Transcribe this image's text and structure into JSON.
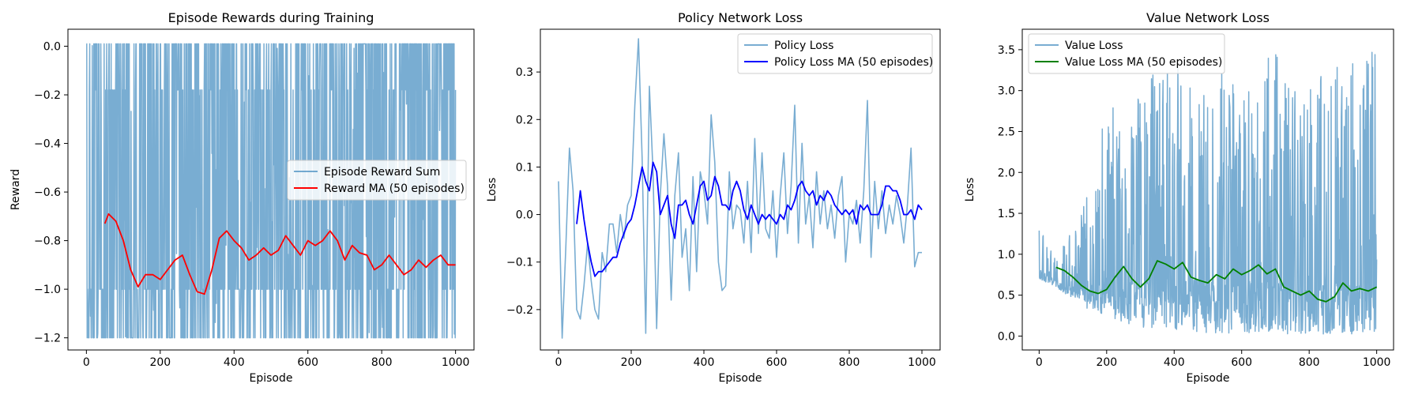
{
  "chart_data": [
    {
      "type": "line",
      "title": "Episode Rewards during Training",
      "xlabel": "Episode",
      "ylabel": "Reward",
      "xlim": [
        -50,
        1050
      ],
      "ylim": [
        -1.25,
        0.07
      ],
      "xticks": [
        0,
        200,
        400,
        600,
        800,
        1000
      ],
      "yticks": [
        -1.2,
        -1.0,
        -0.8,
        -0.6,
        -0.4,
        -0.2,
        0.0
      ],
      "ytick_labels": [
        "−1.2",
        "−1.0",
        "−0.8",
        "−0.6",
        "−0.4",
        "−0.2",
        "0.0"
      ],
      "legend_position": "center-right",
      "series": [
        {
          "name": "Episode Reward Sum",
          "kind": "noisy",
          "color": "#1f77b4",
          "x": [
            0,
            25,
            50,
            100,
            150,
            200,
            300,
            400,
            500,
            600,
            700,
            800,
            900,
            1000
          ],
          "low": [
            -1.2,
            -1.2,
            -1.2,
            -1.2,
            -1.2,
            -1.2,
            -1.2,
            -1.2,
            -1.2,
            -1.2,
            -1.2,
            -1.2,
            -1.2,
            -1.2
          ],
          "high": [
            0.01,
            0.01,
            0.01,
            0.01,
            0.01,
            0.01,
            0.01,
            0.01,
            0.01,
            0.01,
            0.01,
            0.01,
            0.01,
            0.01
          ]
        },
        {
          "name": "Reward MA (50 episodes)",
          "kind": "smooth",
          "color": "#ff0000",
          "x": [
            50,
            60,
            80,
            100,
            120,
            140,
            160,
            180,
            200,
            220,
            240,
            260,
            280,
            300,
            320,
            340,
            360,
            380,
            400,
            420,
            440,
            460,
            480,
            500,
            520,
            540,
            560,
            580,
            600,
            620,
            640,
            660,
            680,
            700,
            720,
            740,
            760,
            780,
            800,
            820,
            840,
            860,
            880,
            900,
            920,
            940,
            960,
            980,
            1000
          ],
          "values": [
            -0.73,
            -0.69,
            -0.72,
            -0.8,
            -0.92,
            -0.99,
            -0.94,
            -0.94,
            -0.96,
            -0.92,
            -0.88,
            -0.86,
            -0.94,
            -1.01,
            -1.02,
            -0.92,
            -0.79,
            -0.76,
            -0.8,
            -0.83,
            -0.88,
            -0.86,
            -0.83,
            -0.86,
            -0.84,
            -0.78,
            -0.82,
            -0.86,
            -0.8,
            -0.82,
            -0.8,
            -0.76,
            -0.8,
            -0.88,
            -0.82,
            -0.85,
            -0.86,
            -0.92,
            -0.9,
            -0.86,
            -0.9,
            -0.94,
            -0.92,
            -0.88,
            -0.91,
            -0.88,
            -0.86,
            -0.9,
            -0.9
          ]
        }
      ]
    },
    {
      "type": "line",
      "title": "Policy Network Loss",
      "xlabel": "Episode",
      "ylabel": "Loss",
      "xlim": [
        -50,
        1050
      ],
      "ylim": [
        -0.285,
        0.39
      ],
      "xticks": [
        0,
        200,
        400,
        600,
        800,
        1000
      ],
      "yticks": [
        -0.2,
        -0.1,
        0.0,
        0.1,
        0.2,
        0.3
      ],
      "ytick_labels": [
        "−0.2",
        "−0.1",
        "0.0",
        "0.1",
        "0.2",
        "0.3"
      ],
      "legend_position": "top-right",
      "series": [
        {
          "name": "Policy Loss",
          "kind": "smooth",
          "color": "#1f77b4",
          "x": [
            0,
            10,
            20,
            30,
            40,
            50,
            60,
            70,
            80,
            90,
            100,
            110,
            120,
            130,
            140,
            150,
            160,
            170,
            180,
            190,
            200,
            210,
            220,
            230,
            240,
            250,
            260,
            270,
            280,
            290,
            300,
            310,
            320,
            330,
            340,
            350,
            360,
            370,
            380,
            390,
            400,
            410,
            420,
            430,
            440,
            450,
            460,
            470,
            480,
            490,
            500,
            510,
            520,
            530,
            540,
            550,
            560,
            570,
            580,
            590,
            600,
            610,
            620,
            630,
            640,
            650,
            660,
            670,
            680,
            690,
            700,
            710,
            720,
            730,
            740,
            750,
            760,
            770,
            780,
            790,
            800,
            810,
            820,
            830,
            840,
            850,
            860,
            870,
            880,
            890,
            900,
            910,
            920,
            930,
            940,
            950,
            960,
            970,
            980,
            990,
            1000
          ],
          "values": [
            0.07,
            -0.26,
            -0.07,
            0.14,
            0.05,
            -0.2,
            -0.22,
            -0.15,
            -0.06,
            -0.14,
            -0.2,
            -0.22,
            -0.08,
            -0.12,
            -0.02,
            -0.02,
            -0.08,
            0.0,
            -0.05,
            0.02,
            0.04,
            0.23,
            0.37,
            0.12,
            -0.25,
            0.27,
            0.09,
            -0.24,
            0.04,
            0.17,
            0.06,
            -0.18,
            0.04,
            0.13,
            -0.09,
            -0.03,
            -0.16,
            0.08,
            -0.12,
            0.09,
            0.05,
            -0.02,
            0.21,
            0.11,
            -0.1,
            -0.16,
            -0.15,
            0.09,
            -0.03,
            0.02,
            0.01,
            -0.06,
            0.07,
            -0.08,
            0.16,
            -0.04,
            0.13,
            -0.03,
            -0.05,
            0.05,
            -0.09,
            0.04,
            0.13,
            -0.04,
            0.06,
            0.23,
            -0.06,
            0.15,
            -0.02,
            0.04,
            -0.07,
            0.09,
            -0.02,
            0.05,
            -0.03,
            0.02,
            -0.05,
            0.04,
            0.08,
            -0.1,
            0.0,
            -0.02,
            0.03,
            -0.06,
            0.05,
            0.24,
            -0.09,
            0.07,
            -0.03,
            0.05,
            -0.04,
            0.02,
            -0.02,
            0.04,
            0.0,
            -0.06,
            0.02,
            0.14,
            -0.11,
            -0.08,
            -0.08
          ]
        },
        {
          "name": "Policy Loss MA (50 episodes)",
          "kind": "smooth",
          "color": "#0000ff",
          "x": [
            50,
            60,
            70,
            80,
            90,
            100,
            110,
            120,
            130,
            140,
            150,
            160,
            170,
            180,
            190,
            200,
            210,
            220,
            230,
            240,
            250,
            260,
            270,
            280,
            290,
            300,
            310,
            320,
            330,
            340,
            350,
            360,
            370,
            380,
            390,
            400,
            410,
            420,
            430,
            440,
            450,
            460,
            470,
            480,
            490,
            500,
            510,
            520,
            530,
            540,
            550,
            560,
            570,
            580,
            590,
            600,
            610,
            620,
            630,
            640,
            650,
            660,
            670,
            680,
            690,
            700,
            710,
            720,
            730,
            740,
            750,
            760,
            770,
            780,
            790,
            800,
            810,
            820,
            830,
            840,
            850,
            860,
            870,
            880,
            890,
            900,
            910,
            920,
            930,
            940,
            950,
            960,
            970,
            980,
            990,
            1000
          ],
          "values": [
            -0.02,
            0.05,
            -0.01,
            -0.06,
            -0.1,
            -0.13,
            -0.12,
            -0.12,
            -0.11,
            -0.1,
            -0.09,
            -0.09,
            -0.06,
            -0.04,
            -0.02,
            -0.01,
            0.02,
            0.06,
            0.1,
            0.07,
            0.05,
            0.11,
            0.09,
            0.0,
            0.02,
            0.04,
            -0.02,
            -0.05,
            0.02,
            0.02,
            0.03,
            0.0,
            -0.02,
            0.02,
            0.06,
            0.07,
            0.03,
            0.04,
            0.08,
            0.06,
            0.02,
            0.02,
            0.01,
            0.05,
            0.07,
            0.05,
            0.01,
            -0.01,
            0.02,
            0.0,
            -0.02,
            0.0,
            -0.01,
            0.0,
            -0.01,
            -0.02,
            0.0,
            -0.01,
            0.02,
            0.01,
            0.03,
            0.06,
            0.07,
            0.05,
            0.04,
            0.05,
            0.02,
            0.04,
            0.03,
            0.05,
            0.04,
            0.02,
            0.01,
            0.0,
            0.01,
            0.0,
            0.01,
            -0.02,
            0.02,
            0.01,
            0.02,
            0.0,
            0.0,
            0.0,
            0.02,
            0.06,
            0.06,
            0.05,
            0.05,
            0.03,
            0.0,
            0.0,
            0.01,
            -0.01,
            0.02,
            0.01
          ]
        }
      ]
    },
    {
      "type": "line",
      "title": "Value Network Loss",
      "xlabel": "Episode",
      "ylabel": "Loss",
      "xlim": [
        -50,
        1050
      ],
      "ylim": [
        -0.17,
        3.75
      ],
      "xticks": [
        0,
        200,
        400,
        600,
        800,
        1000
      ],
      "yticks": [
        0.0,
        0.5,
        1.0,
        1.5,
        2.0,
        2.5,
        3.0,
        3.5
      ],
      "ytick_labels": [
        "0.0",
        "0.5",
        "1.0",
        "1.5",
        "2.0",
        "2.5",
        "3.0",
        "3.5"
      ],
      "legend_position": "top-left",
      "series": [
        {
          "name": "Value Loss",
          "kind": "noisy",
          "color": "#1f77b4",
          "x": [
            0,
            50,
            100,
            150,
            200,
            250,
            300,
            350,
            400,
            450,
            500,
            550,
            600,
            650,
            700,
            750,
            800,
            850,
            900,
            950,
            1000
          ],
          "low": [
            0.7,
            0.6,
            0.45,
            0.3,
            0.22,
            0.15,
            0.1,
            0.08,
            0.06,
            0.05,
            0.04,
            0.03,
            0.03,
            0.02,
            0.02,
            0.02,
            0.02,
            0.02,
            0.02,
            0.02,
            0.02
          ],
          "high": [
            1.3,
            1.0,
            1.3,
            1.8,
            3.0,
            2.5,
            3.1,
            3.3,
            3.3,
            3.3,
            3.2,
            3.4,
            3.2,
            3.3,
            3.5,
            3.0,
            3.3,
            3.4,
            3.4,
            3.3,
            3.55
          ]
        },
        {
          "name": "Value Loss MA (50 episodes)",
          "kind": "smooth",
          "color": "#008000",
          "x": [
            50,
            75,
            100,
            125,
            150,
            175,
            200,
            225,
            250,
            275,
            300,
            325,
            350,
            375,
            400,
            425,
            450,
            475,
            500,
            525,
            550,
            575,
            600,
            625,
            650,
            675,
            700,
            725,
            750,
            775,
            800,
            825,
            850,
            875,
            900,
            925,
            950,
            975,
            1000
          ],
          "values": [
            0.84,
            0.8,
            0.72,
            0.62,
            0.55,
            0.52,
            0.57,
            0.72,
            0.85,
            0.7,
            0.6,
            0.7,
            0.92,
            0.88,
            0.82,
            0.9,
            0.72,
            0.68,
            0.65,
            0.75,
            0.7,
            0.82,
            0.75,
            0.8,
            0.87,
            0.76,
            0.82,
            0.6,
            0.55,
            0.5,
            0.55,
            0.45,
            0.42,
            0.48,
            0.65,
            0.55,
            0.58,
            0.55,
            0.6
          ]
        }
      ]
    }
  ]
}
